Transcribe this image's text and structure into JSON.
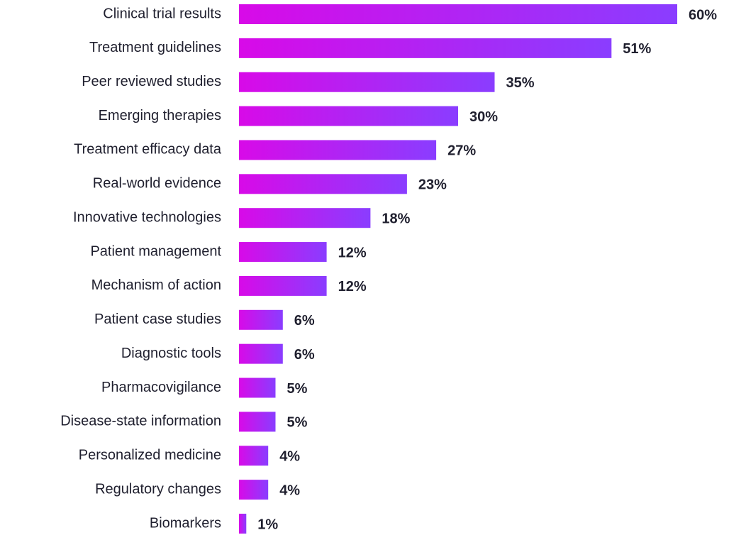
{
  "chart_data": {
    "type": "bar",
    "orientation": "horizontal",
    "categories": [
      "Clinical trial results",
      "Treatment guidelines",
      "Peer reviewed studies",
      "Emerging therapies",
      "Treatment efficacy data",
      "Real-world evidence",
      "Innovative technologies",
      "Patient management",
      "Mechanism of action",
      "Patient case studies",
      "Diagnostic tools",
      "Pharmacovigilance",
      "Disease-state information",
      "Personalized medicine",
      "Regulatory changes",
      "Biomarkers"
    ],
    "values": [
      60,
      51,
      35,
      30,
      27,
      23,
      18,
      12,
      12,
      6,
      6,
      5,
      5,
      4,
      4,
      1
    ],
    "value_labels": [
      "60%",
      "51%",
      "35%",
      "30%",
      "27%",
      "23%",
      "18%",
      "12%",
      "12%",
      "6%",
      "6%",
      "5%",
      "5%",
      "4%",
      "4%",
      "1%"
    ],
    "color": [
      "#d80ae8",
      "#8a3dff"
    ]
  }
}
